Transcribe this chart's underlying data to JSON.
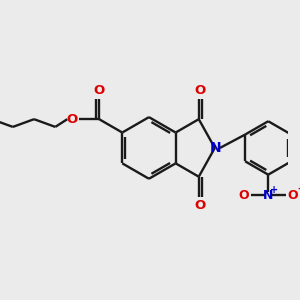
{
  "bg_color": "#ebebeb",
  "bond_color": "#1a1a1a",
  "o_color": "#dd0000",
  "n_color": "#0000cc",
  "lw": 1.7,
  "figsize": [
    3.0,
    3.0
  ],
  "dpi": 100,
  "xlim": [
    10,
    290
  ],
  "ylim": [
    60,
    240
  ]
}
